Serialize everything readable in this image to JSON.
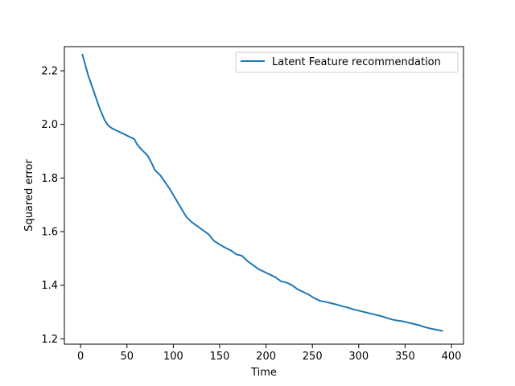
{
  "chart_data": {
    "type": "line",
    "title": "",
    "xlabel": "Time",
    "ylabel": "Squared error",
    "xlim": [
      -17.5,
      413
    ],
    "ylim": [
      1.18,
      2.29
    ],
    "xticks": [
      0,
      50,
      100,
      150,
      200,
      250,
      300,
      350,
      400
    ],
    "yticks": [
      1.2,
      1.4,
      1.6,
      1.8,
      2.0,
      2.2
    ],
    "ytick_labels": [
      "1.2",
      "1.4",
      "1.6",
      "1.8",
      "2.0",
      "2.2"
    ],
    "grid": false,
    "legend_position": "top-right",
    "series": [
      {
        "name": "Latent Feature recommendation",
        "color": "#1f77b4",
        "x": [
          2,
          8,
          14,
          20,
          26,
          30,
          34,
          40,
          46,
          52,
          58,
          61,
          66,
          72,
          76,
          80,
          86,
          90,
          96,
          102,
          108,
          114,
          120,
          126,
          132,
          138,
          144,
          150,
          156,
          162,
          168,
          174,
          180,
          186,
          192,
          198,
          204,
          210,
          216,
          222,
          228,
          234,
          240,
          246,
          252,
          258,
          264,
          270,
          276,
          282,
          288,
          294,
          300,
          306,
          312,
          318,
          324,
          330,
          336,
          342,
          348,
          354,
          360,
          366,
          372,
          378,
          384,
          390
        ],
        "y": [
          2.26,
          2.185,
          2.125,
          2.065,
          2.015,
          1.995,
          1.985,
          1.975,
          1.965,
          1.955,
          1.945,
          1.925,
          1.905,
          1.885,
          1.86,
          1.83,
          1.81,
          1.79,
          1.76,
          1.725,
          1.69,
          1.655,
          1.635,
          1.62,
          1.605,
          1.59,
          1.565,
          1.552,
          1.54,
          1.53,
          1.515,
          1.51,
          1.49,
          1.475,
          1.46,
          1.45,
          1.44,
          1.43,
          1.415,
          1.41,
          1.4,
          1.385,
          1.375,
          1.365,
          1.352,
          1.342,
          1.338,
          1.333,
          1.328,
          1.322,
          1.317,
          1.31,
          1.305,
          1.3,
          1.295,
          1.29,
          1.285,
          1.278,
          1.272,
          1.268,
          1.265,
          1.26,
          1.255,
          1.25,
          1.243,
          1.238,
          1.234,
          1.23
        ]
      }
    ]
  }
}
